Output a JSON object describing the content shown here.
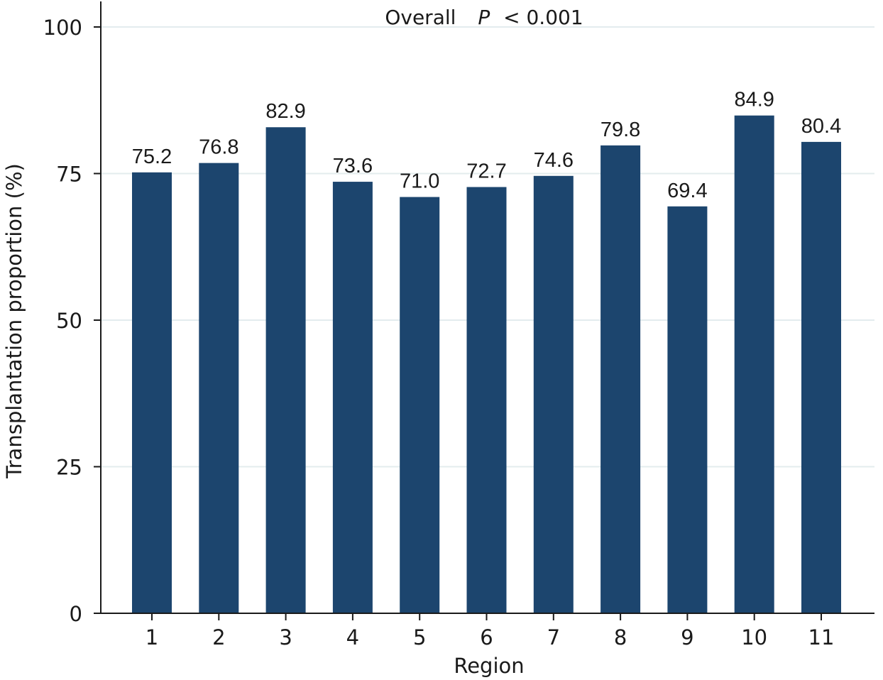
{
  "chart_data": {
    "type": "bar",
    "title_prefix": "Overall",
    "title_stat": "P",
    "title_suffix": "< 0.001",
    "xlabel": "Region",
    "ylabel": "Transplantation proportion (%)",
    "categories": [
      "1",
      "2",
      "3",
      "4",
      "5",
      "6",
      "7",
      "8",
      "9",
      "10",
      "11"
    ],
    "values": [
      75.2,
      76.8,
      82.9,
      73.6,
      71.0,
      72.7,
      74.6,
      79.8,
      69.4,
      84.9,
      80.4
    ],
    "value_labels": [
      "75.2",
      "76.8",
      "82.9",
      "73.6",
      "71.0",
      "72.7",
      "74.6",
      "79.8",
      "69.4",
      "84.9",
      "80.4"
    ],
    "ylim": [
      0,
      100
    ],
    "yticks": [
      0,
      25,
      50,
      75,
      100
    ],
    "grid": true,
    "legend": "none",
    "bar_color": "#1c456e",
    "grid_color": "#e3ecee"
  }
}
